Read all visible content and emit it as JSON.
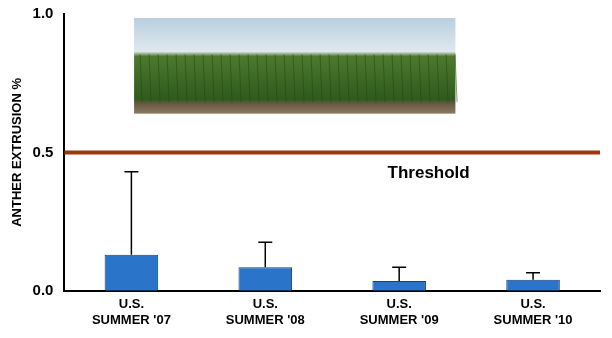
{
  "chart_data": {
    "type": "bar",
    "categories": [
      "U.S. SUMMER '07",
      "U.S. SUMMER '08",
      "U.S. SUMMER '09",
      "U.S. SUMMER '10"
    ],
    "values": [
      0.13,
      0.085,
      0.035,
      0.04
    ],
    "errors": [
      0.3,
      0.09,
      0.05,
      0.025
    ],
    "color": "#2a74c9",
    "ylabel": "ANTHER EXTRUSION %",
    "ylim": [
      0,
      1
    ],
    "yticks": [
      {
        "value": 0,
        "label": "0.0"
      },
      {
        "value": 0.5,
        "label": "0.5"
      },
      {
        "value": 1,
        "label": "1.0"
      }
    ],
    "grid": false,
    "threshold": {
      "value": 0.5,
      "label": "Threshold",
      "color": "#a0360f"
    }
  }
}
